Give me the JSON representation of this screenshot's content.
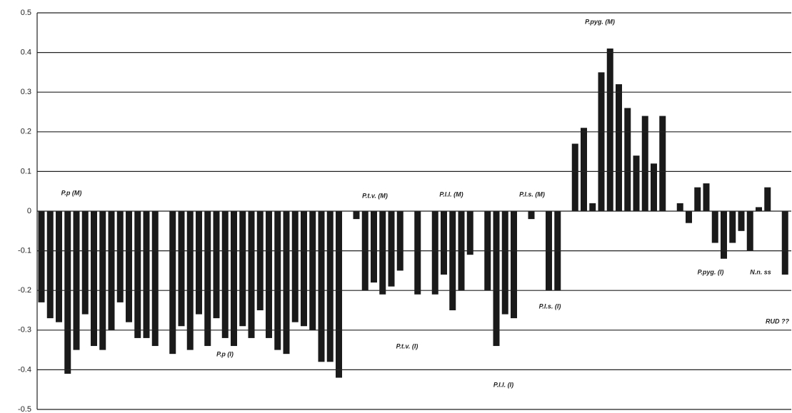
{
  "chart_data": {
    "type": "bar",
    "categories": [
      null,
      null,
      null,
      null,
      null,
      null,
      null,
      null,
      null,
      null,
      null,
      null,
      null,
      null,
      null,
      null,
      null,
      null,
      null,
      null,
      null,
      null,
      null,
      null,
      null,
      null,
      null,
      null,
      null,
      null,
      null,
      null,
      null,
      null,
      null,
      null,
      null,
      null,
      null,
      null,
      null,
      null,
      null,
      null,
      null,
      null,
      null,
      null,
      null,
      null,
      null,
      null,
      null,
      null,
      null,
      null,
      null,
      null,
      null,
      null,
      null,
      null,
      null,
      null,
      null,
      null,
      null,
      null,
      null,
      null,
      null,
      null,
      null,
      null,
      null,
      null,
      null,
      null,
      null,
      null,
      null,
      null,
      null,
      null,
      null,
      null
    ],
    "values": [
      -0.23,
      -0.27,
      -0.28,
      -0.41,
      -0.35,
      -0.26,
      -0.34,
      -0.35,
      -0.3,
      -0.23,
      -0.28,
      -0.32,
      -0.32,
      -0.34,
      null,
      -0.36,
      -0.29,
      -0.35,
      -0.26,
      -0.34,
      -0.27,
      -0.32,
      -0.34,
      -0.29,
      -0.32,
      -0.25,
      -0.32,
      -0.35,
      -0.36,
      -0.28,
      -0.29,
      -0.3,
      -0.38,
      -0.38,
      -0.42,
      null,
      -0.02,
      -0.2,
      -0.18,
      -0.21,
      -0.19,
      -0.15,
      null,
      -0.21,
      null,
      -0.21,
      -0.16,
      -0.25,
      -0.2,
      -0.11,
      null,
      -0.2,
      -0.34,
      -0.26,
      -0.27,
      null,
      -0.02,
      null,
      -0.2,
      -0.2,
      null,
      0.17,
      0.21,
      0.02,
      0.35,
      0.41,
      0.32,
      0.26,
      0.14,
      0.24,
      0.12,
      0.24,
      null,
      0.02,
      -0.03,
      0.06,
      0.07,
      -0.08,
      -0.12,
      -0.08,
      -0.05,
      -0.1,
      0.01,
      0.06,
      null,
      -0.16
    ],
    "color": "#1a1a1a",
    "ylim": [
      -0.5,
      0.5
    ],
    "yticks": [
      -0.5,
      -0.4,
      -0.3,
      -0.2,
      -0.1,
      0,
      0.1,
      0.2,
      0.3,
      0.4,
      0.5
    ],
    "grid": true,
    "annotations": [
      "P.p (M)",
      "P.p (I)",
      "P.t.v. (M)",
      "P.t.v. (I)",
      "P.l.l. (M)",
      "P.l.l. (I)",
      "P.l.s. (M)",
      "P.l.s. (I)",
      "P.pyg. (M)",
      "P.pyg. (I)",
      "N.n. ss",
      "RUD ??"
    ]
  }
}
